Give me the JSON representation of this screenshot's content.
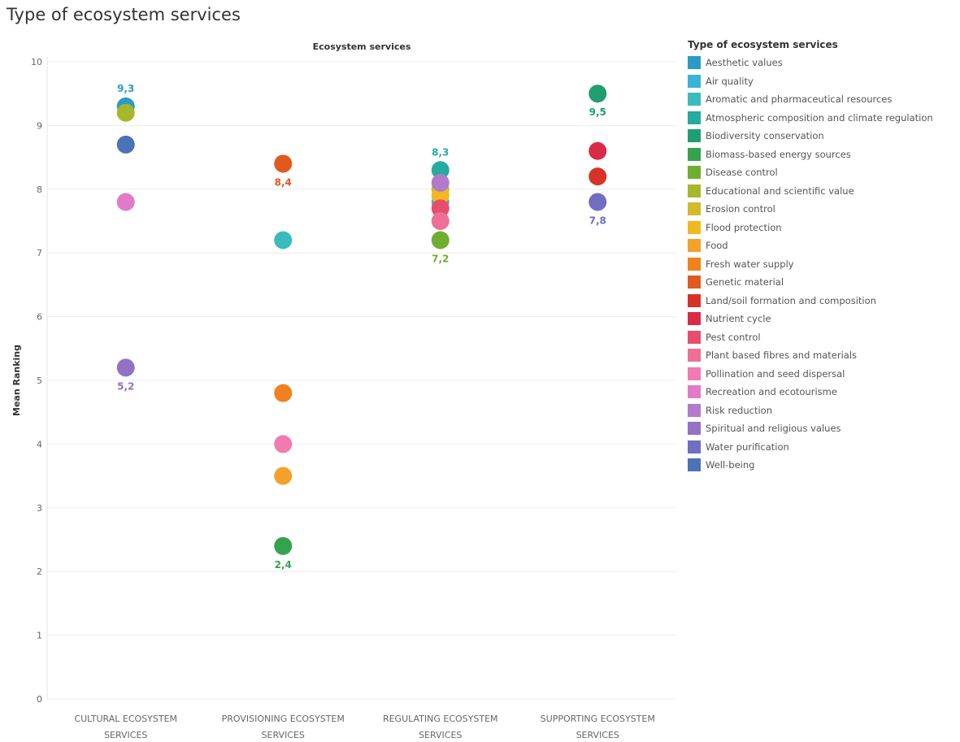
{
  "chart_data": {
    "type": "scatter",
    "title": "Type of ecosystem services",
    "column_header": "Ecosystem services",
    "ylabel": "Mean Ranking",
    "ylim": [
      0,
      10
    ],
    "yticks": [
      "0",
      "1",
      "2",
      "3",
      "4",
      "5",
      "6",
      "7",
      "8",
      "9",
      "10"
    ],
    "grid": true,
    "legend_position": "right",
    "legend_title": "Type of ecosystem services",
    "categories": [
      [
        "CULTURAL ECOSYSTEM",
        "SERVICES"
      ],
      [
        "PROVISIONING ECOSYSTEM",
        "SERVICES"
      ],
      [
        "REGULATING ECOSYSTEM",
        "SERVICES"
      ],
      [
        "SUPPORTING ECOSYSTEM",
        "SERVICES"
      ]
    ],
    "series": [
      {
        "name": "Aesthetic values",
        "color": "#2a9bc6",
        "points": [
          {
            "category": 0,
            "value": 9.3,
            "label": "9,3"
          }
        ]
      },
      {
        "name": "Air quality",
        "color": "#3ab3d4",
        "points": [
          {
            "category": 2,
            "value": 7.8
          }
        ]
      },
      {
        "name": "Aromatic and pharmaceutical resources",
        "color": "#3bbcbc",
        "points": [
          {
            "category": 1,
            "value": 7.2
          }
        ]
      },
      {
        "name": "Atmospheric composition and climate regulation",
        "color": "#25ab9f",
        "points": [
          {
            "category": 2,
            "value": 8.3,
            "label": "8,3"
          }
        ]
      },
      {
        "name": "Biodiversity conservation",
        "color": "#1f9e6f",
        "points": [
          {
            "category": 3,
            "value": 9.5,
            "label": "9,5"
          }
        ]
      },
      {
        "name": "Biomass-based energy sources",
        "color": "#34a34e",
        "points": [
          {
            "category": 1,
            "value": 2.4,
            "label": "2,4"
          }
        ]
      },
      {
        "name": "Disease control",
        "color": "#6fae2e",
        "points": [
          {
            "category": 2,
            "value": 7.2,
            "label": "7,2"
          }
        ]
      },
      {
        "name": "Educational and scientific value",
        "color": "#a7b72a",
        "points": [
          {
            "category": 0,
            "value": 9.2
          }
        ]
      },
      {
        "name": "Erosion control",
        "color": "#d0bb28",
        "points": [
          {
            "category": 2,
            "value": 8.0
          }
        ]
      },
      {
        "name": "Flood protection",
        "color": "#f2b81f",
        "points": [
          {
            "category": 2,
            "value": 7.9
          }
        ]
      },
      {
        "name": "Food",
        "color": "#f4a12a",
        "points": [
          {
            "category": 1,
            "value": 3.5
          }
        ]
      },
      {
        "name": "Fresh water supply",
        "color": "#f1801e",
        "points": [
          {
            "category": 1,
            "value": 4.8
          }
        ]
      },
      {
        "name": "Genetic material",
        "color": "#e05a1f",
        "points": [
          {
            "category": 1,
            "value": 8.4,
            "label": "8,4"
          }
        ]
      },
      {
        "name": "Land/soil formation and composition",
        "color": "#d83227",
        "points": [
          {
            "category": 3,
            "value": 8.2
          }
        ]
      },
      {
        "name": "Nutrient cycle",
        "color": "#d92b45",
        "points": [
          {
            "category": 3,
            "value": 8.6
          }
        ]
      },
      {
        "name": "Pest control",
        "color": "#e84d6d",
        "points": [
          {
            "category": 2,
            "value": 7.7
          }
        ]
      },
      {
        "name": "Plant based fibres and materials",
        "color": "#ee6f97",
        "points": [
          {
            "category": 2,
            "value": 7.5
          }
        ]
      },
      {
        "name": "Pollination and seed dispersal",
        "color": "#f07bb0",
        "points": [
          {
            "category": 1,
            "value": 4.0
          }
        ]
      },
      {
        "name": "Recreation and ecotourisme",
        "color": "#e07ac9",
        "points": [
          {
            "category": 0,
            "value": 7.8
          }
        ]
      },
      {
        "name": "Risk reduction",
        "color": "#b17bc9",
        "points": [
          {
            "category": 2,
            "value": 8.1
          }
        ]
      },
      {
        "name": "Spiritual and religious values",
        "color": "#9371c4",
        "points": [
          {
            "category": 0,
            "value": 5.2,
            "label": "5,2"
          }
        ]
      },
      {
        "name": "Water purification",
        "color": "#6f6ec1",
        "points": [
          {
            "category": 3,
            "value": 7.8,
            "label": "7,8"
          }
        ]
      },
      {
        "name": "Well-being",
        "color": "#4a73b8",
        "points": [
          {
            "category": 0,
            "value": 8.7
          }
        ]
      }
    ]
  }
}
